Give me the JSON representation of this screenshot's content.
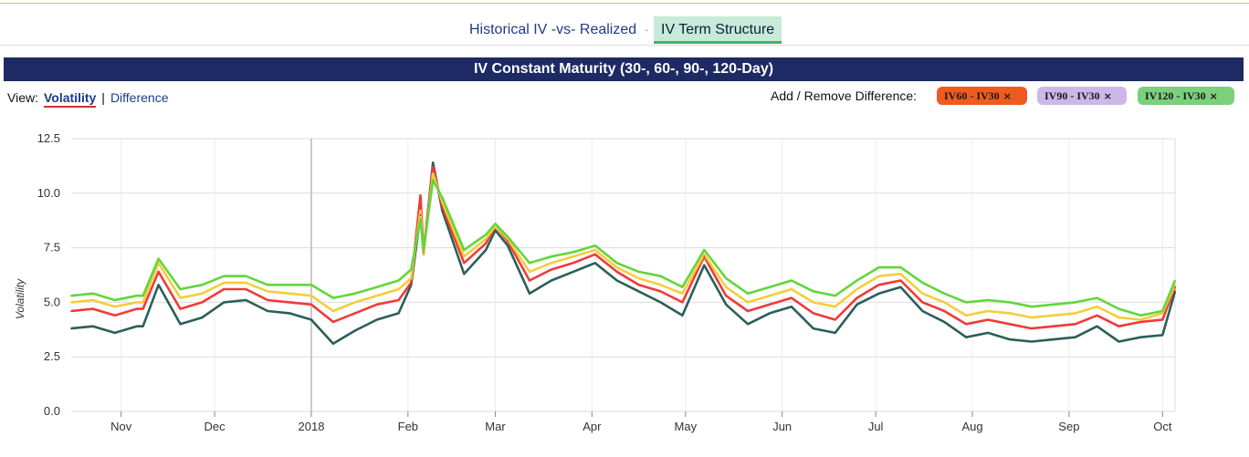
{
  "tabs": [
    {
      "label": "Historical IV -vs- Realized",
      "active": false
    },
    {
      "label": "IV Term Structure",
      "active": true
    }
  ],
  "tab_separator": "·",
  "title": "IV Constant Maturity (30-, 60-, 90-, 120-Day)",
  "view": {
    "label": "View:",
    "active": "Volatility",
    "separator": "|",
    "other": "Difference"
  },
  "difference": {
    "label": "Add / Remove Difference:",
    "chips": [
      {
        "label": "IV60 - IV30",
        "remove": "×",
        "color": "#ee5b1f",
        "text_color": "#1a1a1a"
      },
      {
        "label": "IV90 - IV30",
        "remove": "×",
        "color": "#cdb6e8",
        "text_color": "#1a1a1a"
      },
      {
        "label": "IV120 - IV30",
        "remove": "×",
        "color": "#7ccf7c",
        "text_color": "#1a1a1a"
      }
    ]
  },
  "chart_data": {
    "type": "line",
    "ylabel": "Volatility",
    "ylim": [
      0,
      12.5
    ],
    "yticks": [
      "0.0",
      "2.5",
      "5.0",
      "7.5",
      "10.0",
      "12.5"
    ],
    "grid": true,
    "x_range": [
      "2017-10-16",
      "2018-10-05"
    ],
    "xticks": [
      {
        "label": "Nov",
        "date": "2017-11-01"
      },
      {
        "label": "Dec",
        "date": "2017-12-01"
      },
      {
        "label": "2018",
        "date": "2018-01-01"
      },
      {
        "label": "Feb",
        "date": "2018-02-01"
      },
      {
        "label": "Mar",
        "date": "2018-03-01"
      },
      {
        "label": "Apr",
        "date": "2018-04-01"
      },
      {
        "label": "May",
        "date": "2018-05-01"
      },
      {
        "label": "Jun",
        "date": "2018-06-01"
      },
      {
        "label": "Jul",
        "date": "2018-07-01"
      },
      {
        "label": "Aug",
        "date": "2018-08-01"
      },
      {
        "label": "Sep",
        "date": "2018-09-01"
      },
      {
        "label": "Oct",
        "date": "2018-10-01"
      }
    ],
    "x": [
      "2017-10-16",
      "2017-10-23",
      "2017-10-30",
      "2017-11-06",
      "2017-11-08",
      "2017-11-13",
      "2017-11-20",
      "2017-11-27",
      "2017-12-04",
      "2017-12-11",
      "2017-12-18",
      "2017-12-25",
      "2018-01-01",
      "2018-01-08",
      "2018-01-15",
      "2018-01-22",
      "2018-01-29",
      "2018-02-02",
      "2018-02-05",
      "2018-02-06",
      "2018-02-09",
      "2018-02-12",
      "2018-02-19",
      "2018-02-26",
      "2018-03-01",
      "2018-03-05",
      "2018-03-12",
      "2018-03-19",
      "2018-03-26",
      "2018-04-02",
      "2018-04-09",
      "2018-04-16",
      "2018-04-23",
      "2018-04-30",
      "2018-05-07",
      "2018-05-14",
      "2018-05-21",
      "2018-05-28",
      "2018-06-04",
      "2018-06-11",
      "2018-06-18",
      "2018-06-25",
      "2018-07-02",
      "2018-07-09",
      "2018-07-16",
      "2018-07-23",
      "2018-07-30",
      "2018-08-06",
      "2018-08-13",
      "2018-08-20",
      "2018-08-27",
      "2018-09-03",
      "2018-09-10",
      "2018-09-17",
      "2018-09-24",
      "2018-10-01",
      "2018-10-05"
    ],
    "series": [
      {
        "color": "#2b5f5a",
        "values": [
          3.8,
          3.9,
          3.6,
          3.9,
          3.9,
          5.8,
          4.0,
          4.3,
          5.0,
          5.1,
          4.6,
          4.5,
          4.2,
          3.1,
          3.7,
          4.2,
          4.5,
          5.8,
          9.0,
          7.2,
          11.4,
          9.2,
          6.3,
          7.4,
          8.3,
          7.6,
          5.4,
          6.0,
          6.4,
          6.8,
          6.0,
          5.5,
          5.0,
          4.4,
          6.7,
          4.9,
          4.0,
          4.5,
          4.8,
          3.8,
          3.6,
          4.9,
          5.4,
          5.7,
          4.6,
          4.1,
          3.4,
          3.6,
          3.3,
          3.2,
          3.3,
          3.4,
          3.9,
          3.2,
          3.4,
          3.5,
          5.5
        ]
      },
      {
        "color": "#f03a3a",
        "values": [
          4.6,
          4.7,
          4.4,
          4.7,
          4.7,
          6.4,
          4.7,
          5.0,
          5.6,
          5.6,
          5.1,
          5.0,
          4.9,
          4.1,
          4.5,
          4.9,
          5.1,
          5.9,
          9.9,
          7.3,
          11.2,
          9.4,
          6.8,
          7.7,
          8.5,
          7.8,
          6.0,
          6.5,
          6.8,
          7.2,
          6.4,
          5.8,
          5.5,
          5.0,
          7.1,
          5.3,
          4.6,
          4.9,
          5.2,
          4.5,
          4.2,
          5.2,
          5.8,
          6.0,
          5.0,
          4.6,
          4.0,
          4.2,
          4.0,
          3.8,
          3.9,
          4.0,
          4.4,
          3.9,
          4.1,
          4.2,
          5.7
        ]
      },
      {
        "color": "#f5cd3a",
        "values": [
          5.0,
          5.1,
          4.8,
          5.0,
          5.0,
          6.8,
          5.2,
          5.4,
          5.9,
          5.9,
          5.5,
          5.4,
          5.3,
          4.6,
          5.0,
          5.3,
          5.6,
          6.1,
          9.2,
          7.2,
          10.9,
          9.6,
          7.1,
          7.9,
          8.5,
          7.9,
          6.4,
          6.8,
          7.1,
          7.4,
          6.6,
          6.1,
          5.8,
          5.4,
          7.2,
          5.7,
          5.0,
          5.3,
          5.6,
          5.0,
          4.8,
          5.6,
          6.2,
          6.3,
          5.4,
          5.0,
          4.4,
          4.6,
          4.5,
          4.3,
          4.4,
          4.5,
          4.8,
          4.3,
          4.2,
          4.5,
          5.8
        ]
      },
      {
        "color": "#62d63a",
        "values": [
          5.3,
          5.4,
          5.1,
          5.3,
          5.3,
          7.0,
          5.6,
          5.8,
          6.2,
          6.2,
          5.8,
          5.8,
          5.8,
          5.2,
          5.4,
          5.7,
          6.0,
          6.5,
          8.8,
          7.4,
          10.6,
          9.8,
          7.4,
          8.1,
          8.6,
          8.0,
          6.8,
          7.1,
          7.3,
          7.6,
          6.8,
          6.4,
          6.2,
          5.7,
          7.4,
          6.1,
          5.4,
          5.7,
          6.0,
          5.5,
          5.3,
          6.0,
          6.6,
          6.6,
          5.9,
          5.4,
          5.0,
          5.1,
          5.0,
          4.8,
          4.9,
          5.0,
          5.2,
          4.7,
          4.4,
          4.6,
          6.0
        ]
      }
    ]
  }
}
